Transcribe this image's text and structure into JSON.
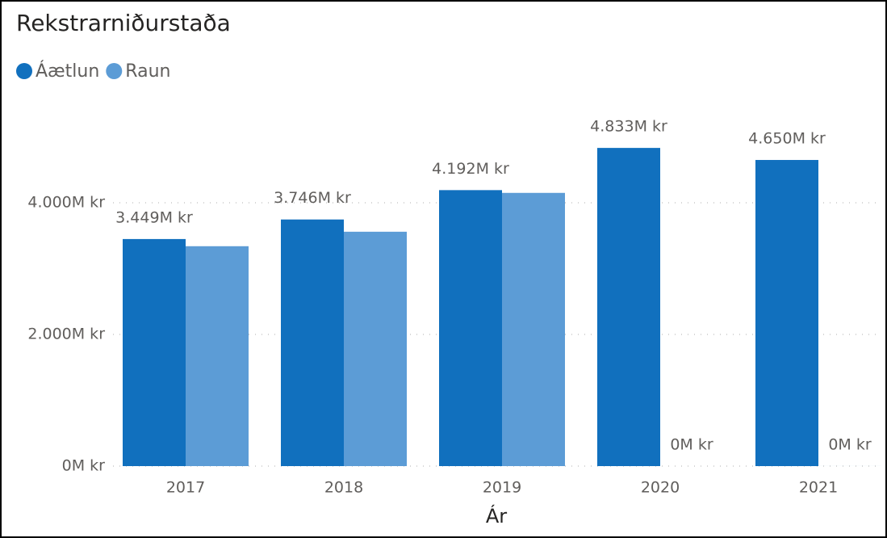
{
  "chart_data": {
    "type": "bar",
    "title": "Rekstrarniðurstaða",
    "x_label": "Ár",
    "categories": [
      "2017",
      "2018",
      "2019",
      "2020",
      "2021"
    ],
    "series": [
      {
        "name": "Áætlun",
        "color": "#1170be",
        "values": [
          3449,
          3746,
          4192,
          4833,
          4650
        ],
        "value_labels": [
          "3.449M kr",
          "3.746M kr",
          "4.192M kr",
          "4.833M kr",
          "4.650M kr"
        ]
      },
      {
        "name": "Raun",
        "color": "#5c9cd6",
        "values": [
          3340,
          3560,
          4150,
          0,
          0.4
        ],
        "value_labels": [
          null,
          null,
          null,
          "0M kr",
          "0M kr"
        ]
      }
    ],
    "ylim": [
      0,
      5000
    ],
    "yticks": [
      {
        "value": 0,
        "label": "0M kr"
      },
      {
        "value": 2000,
        "label": "2.000M kr"
      },
      {
        "value": 4000,
        "label": "4.000M kr"
      }
    ],
    "grid": true,
    "legend": "top-left"
  }
}
